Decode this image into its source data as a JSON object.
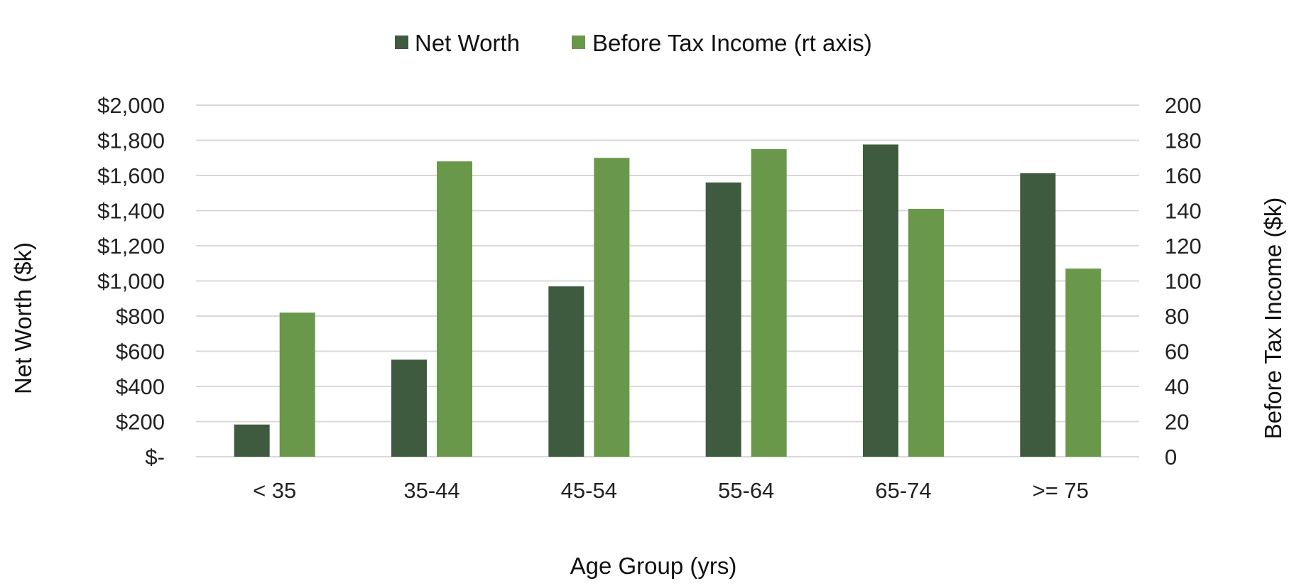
{
  "chart_data": {
    "type": "bar",
    "categories": [
      "< 35",
      "35-44",
      "45-54",
      "55-64",
      "65-74",
      ">= 75"
    ],
    "series": [
      {
        "name": "Net Worth",
        "axis": "left",
        "color": "#3e5a3f",
        "values": [
          183,
          552,
          969,
          1560,
          1776,
          1613
        ]
      },
      {
        "name": "Before Tax Income (rt axis)",
        "axis": "right",
        "color": "#6a984a",
        "values": [
          82,
          168,
          170,
          175,
          141,
          107
        ]
      }
    ],
    "xlabel": "Age Group (yrs)",
    "ylabel": "Net Worth ($k)",
    "y2label": "Before Tax Income ($k)",
    "ylim": [
      0,
      2000
    ],
    "y2lim": [
      0,
      200
    ],
    "y_ticks": [
      "$-",
      "$200",
      "$400",
      "$600",
      "$800",
      "$1,000",
      "$1,200",
      "$1,400",
      "$1,600",
      "$1,800",
      "$2,000"
    ],
    "y2_ticks": [
      "0",
      "20",
      "40",
      "60",
      "80",
      "100",
      "120",
      "140",
      "160",
      "180",
      "200"
    ],
    "grid": true,
    "legend_position": "top-center"
  }
}
